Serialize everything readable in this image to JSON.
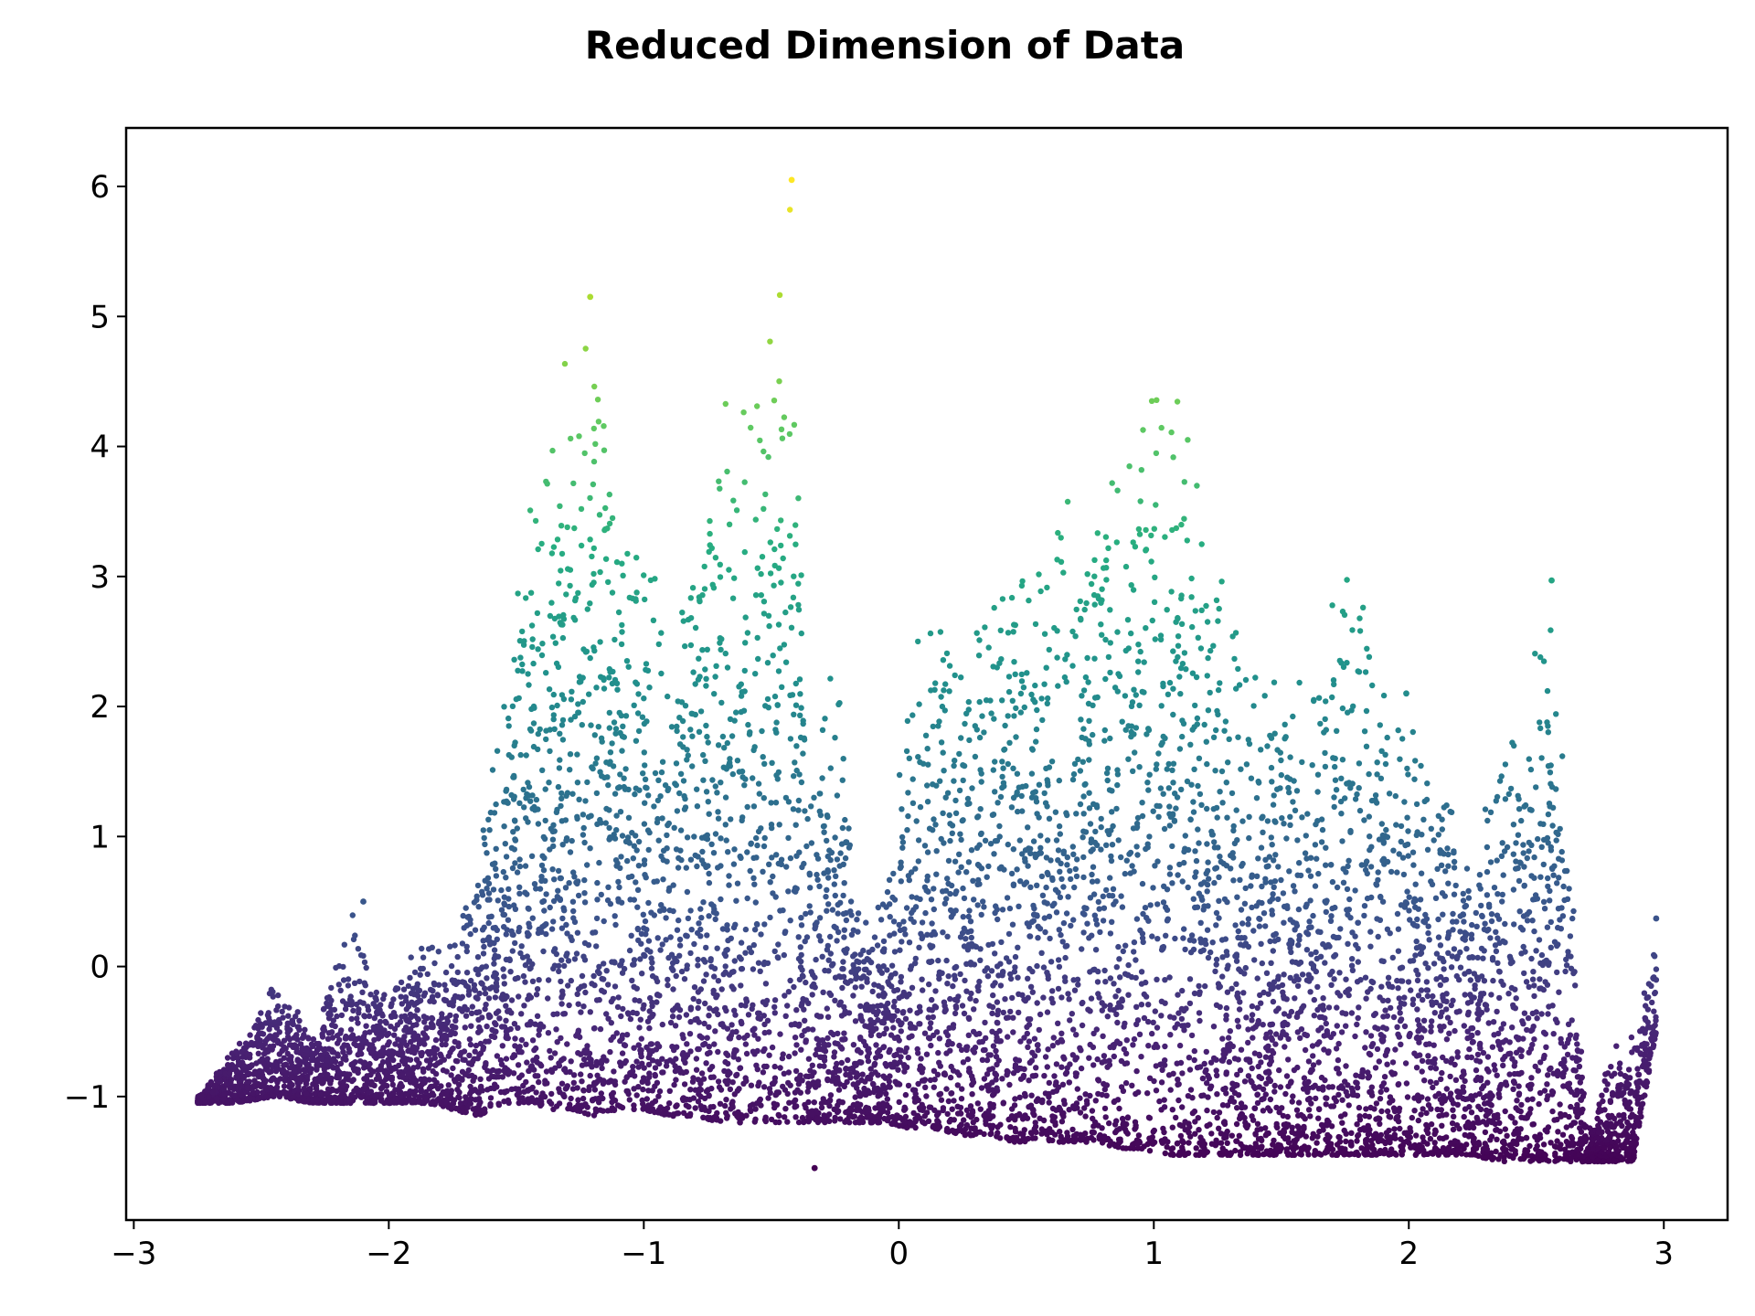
{
  "chart_data": {
    "type": "scatter",
    "title": "Reduced Dimension of Data",
    "xlabel": "",
    "ylabel": "",
    "xlim": [
      -3.03,
      3.25
    ],
    "ylim": [
      -1.95,
      6.45
    ],
    "x_ticks": [
      -3,
      -2,
      -1,
      0,
      1,
      2,
      3
    ],
    "x_tick_labels": [
      "−3",
      "−2",
      "−1",
      "0",
      "1",
      "2",
      "3"
    ],
    "y_ticks": [
      -1,
      0,
      1,
      2,
      3,
      4,
      5,
      6
    ],
    "y_tick_labels": [
      "−1",
      "0",
      "1",
      "2",
      "3",
      "4",
      "5",
      "6"
    ],
    "grid": false,
    "legend": "none",
    "colormap": "viridis",
    "color_encodes": "y",
    "colors": {
      "low": "#440154",
      "mid_low": "#3b528b",
      "mid": "#21918c",
      "mid_high": "#5ec962",
      "high": "#fde725"
    },
    "envelope": {
      "x": [
        -2.75,
        -2.6,
        -2.45,
        -2.3,
        -2.15,
        -2.0,
        -1.85,
        -1.75,
        -1.65,
        -1.55,
        -1.45,
        -1.35,
        -1.28,
        -1.2,
        -1.1,
        -1.0,
        -0.9,
        -0.8,
        -0.7,
        -0.6,
        -0.5,
        -0.42,
        -0.35,
        -0.25,
        -0.15,
        -0.05,
        0.05,
        0.15,
        0.25,
        0.35,
        0.45,
        0.55,
        0.65,
        0.75,
        0.85,
        0.95,
        1.05,
        1.15,
        1.25,
        1.35,
        1.45,
        1.55,
        1.65,
        1.75,
        1.85,
        1.95,
        2.05,
        2.15,
        2.25,
        2.35,
        2.45,
        2.55,
        2.6,
        2.7,
        2.8,
        2.88,
        2.97
      ],
      "top": [
        -1.0,
        -0.6,
        -0.05,
        -0.5,
        0.5,
        -0.2,
        0.3,
        0.3,
        1.2,
        2.3,
        3.8,
        4.8,
        4.7,
        5.15,
        4.0,
        3.5,
        2.8,
        3.8,
        4.5,
        4.4,
        5.3,
        6.05,
        1.3,
        2.6,
        0.4,
        0.8,
        2.4,
        3.3,
        2.5,
        2.9,
        3.2,
        3.2,
        3.9,
        3.8,
        4.3,
        4.7,
        4.8,
        4.25,
        3.3,
        2.7,
        2.5,
        2.3,
        2.4,
        3.25,
        2.6,
        2.1,
        1.7,
        1.7,
        1.1,
        1.8,
        2.3,
        2.95,
        1.95,
        -1.3,
        -0.6,
        -0.5,
        0.37
      ],
      "bottom": [
        -1.05,
        -1.05,
        -1.0,
        -1.05,
        -1.05,
        -1.05,
        -1.05,
        -1.1,
        -1.15,
        -1.05,
        -1.05,
        -1.1,
        -1.1,
        -1.15,
        -1.1,
        -1.1,
        -1.15,
        -1.15,
        -1.2,
        -1.2,
        -1.2,
        -1.2,
        -1.2,
        -1.2,
        -1.2,
        -1.2,
        -1.25,
        -1.25,
        -1.3,
        -1.3,
        -1.35,
        -1.35,
        -1.35,
        -1.35,
        -1.4,
        -1.4,
        -1.45,
        -1.45,
        -1.45,
        -1.45,
        -1.45,
        -1.45,
        -1.45,
        -1.45,
        -1.45,
        -1.45,
        -1.45,
        -1.45,
        -1.45,
        -1.5,
        -1.5,
        -1.5,
        -1.5,
        -1.5,
        -1.5,
        -1.5,
        -0.5
      ]
    },
    "outliers": [
      {
        "x": -0.42,
        "y": 6.05
      },
      {
        "x": -1.21,
        "y": 5.15
      },
      {
        "x": -0.33,
        "y": -1.55
      },
      {
        "x": 2.97,
        "y": 0.37
      },
      {
        "x": 1.99,
        "y": 2.1
      },
      {
        "x": 2.56,
        "y": 2.97
      },
      {
        "x": -2.1,
        "y": 0.5
      }
    ]
  }
}
